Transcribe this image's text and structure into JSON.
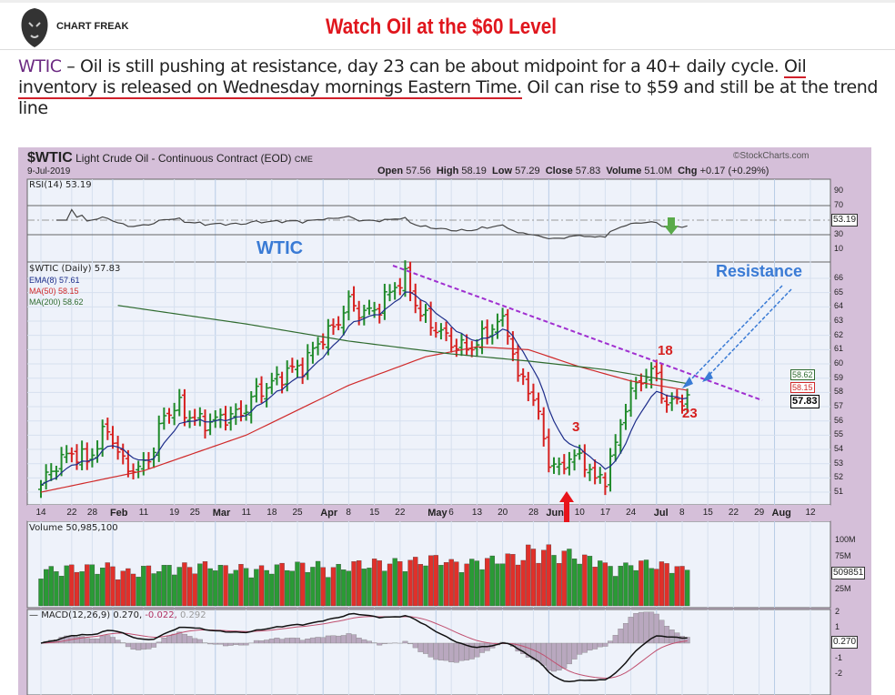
{
  "header": {
    "logo_text": "CHART FREAK",
    "title": "Watch Oil at the $60 Level"
  },
  "article": {
    "lead": "WTIC",
    "text1": "  – Oil is still pushing at resistance, day 23 can be about  midpoint for a 40+ daily cycle. ",
    "underlined": " Oil inventory is released on Wednesday mornings Eastern Time.",
    "text2": " Oil can rise to $59 and still be at the trend line"
  },
  "chart_data": {
    "type": "line",
    "symbol": "$WTIC",
    "name": "Light Crude Oil - Continuous Contract (EOD)",
    "exchange": "CME",
    "date": "9-Jul-2019",
    "source": "©StockCharts.com",
    "quote": {
      "open_label": "Open",
      "open": "57.56",
      "high_label": "High",
      "high": "58.19",
      "low_label": "Low",
      "low": "57.29",
      "close_label": "Close",
      "close": "57.83",
      "volume_label": "Volume",
      "volume": "51.0M",
      "chg_label": "Chg",
      "chg": "+0.17 (+0.29%)"
    },
    "rsi": {
      "label": "RSI(14) 53.19",
      "value_tag": "53.19",
      "ticks": [
        "90",
        "70",
        "30",
        "10"
      ]
    },
    "price": {
      "legend": "$WTIC (Daily) 57.83",
      "ema8": "EMA(8) 57.61",
      "ma50": "MA(50) 58.15",
      "ma200": "MA(200) 58.62",
      "ticks": [
        "66",
        "65",
        "64",
        "63",
        "62",
        "61",
        "60",
        "59",
        "58",
        "57",
        "56",
        "55",
        "54",
        "53",
        "52",
        "51"
      ],
      "tags": {
        "ma200": "58.62",
        "ma50": "58.15",
        "close": "57.83"
      },
      "keypoints_day_close": [
        [
          0,
          51.5
        ],
        [
          3,
          53
        ],
        [
          6,
          53.8
        ],
        [
          9,
          53.2
        ],
        [
          13,
          55.5
        ],
        [
          16,
          53
        ],
        [
          19,
          52.5
        ],
        [
          22,
          54
        ],
        [
          24,
          56.5
        ],
        [
          27,
          57
        ],
        [
          30,
          56
        ],
        [
          33,
          55.9
        ],
        [
          36,
          56.3
        ],
        [
          39,
          56.5
        ],
        [
          42,
          58
        ],
        [
          45,
          58.6
        ],
        [
          48,
          59.5
        ],
        [
          51,
          59.8
        ],
        [
          54,
          61.5
        ],
        [
          57,
          62.5
        ],
        [
          60,
          64.3
        ],
        [
          63,
          63.5
        ],
        [
          66,
          64
        ],
        [
          69,
          65.5
        ],
        [
          71,
          66
        ],
        [
          74,
          63.5
        ],
        [
          77,
          62.5
        ],
        [
          80,
          61.5
        ],
        [
          83,
          61
        ],
        [
          86,
          61.8
        ],
        [
          89,
          63
        ],
        [
          91,
          62.5
        ],
        [
          93,
          59
        ],
        [
          95,
          58.5
        ],
        [
          97,
          56.3
        ],
        [
          99,
          53.2
        ],
        [
          101,
          52.5
        ],
        [
          103,
          53.5
        ],
        [
          106,
          53.2
        ],
        [
          108,
          51.8
        ],
        [
          110,
          52.1
        ],
        [
          112,
          54.3
        ],
        [
          114,
          57.2
        ],
        [
          116,
          58.5
        ],
        [
          118,
          59.3
        ],
        [
          120,
          59.2
        ],
        [
          122,
          57
        ],
        [
          124,
          57.5
        ],
        [
          126,
          57.83
        ]
      ],
      "ma50_keypoints": [
        [
          0,
          51
        ],
        [
          20,
          52.5
        ],
        [
          40,
          55
        ],
        [
          60,
          58.5
        ],
        [
          75,
          60.5
        ],
        [
          85,
          61.2
        ],
        [
          95,
          61
        ],
        [
          105,
          59.8
        ],
        [
          115,
          58.8
        ],
        [
          126,
          58.15
        ]
      ],
      "ma200_keypoints": [
        [
          15,
          64.1
        ],
        [
          40,
          62.8
        ],
        [
          60,
          61.6
        ],
        [
          80,
          60.7
        ],
        [
          95,
          60.2
        ],
        [
          110,
          59.6
        ],
        [
          126,
          58.62
        ]
      ]
    },
    "x_ticks": [
      {
        "d": 0,
        "l": "14"
      },
      {
        "d": 6,
        "l": "22"
      },
      {
        "d": 10,
        "l": "28"
      },
      {
        "d": 14,
        "l": "Feb",
        "b": true
      },
      {
        "d": 20,
        "l": "11"
      },
      {
        "d": 26,
        "l": "19"
      },
      {
        "d": 30,
        "l": "25"
      },
      {
        "d": 34,
        "l": "Mar",
        "b": true
      },
      {
        "d": 40,
        "l": "11"
      },
      {
        "d": 45,
        "l": "18"
      },
      {
        "d": 50,
        "l": "25"
      },
      {
        "d": 55,
        "l": "Apr",
        "b": true
      },
      {
        "d": 60,
        "l": "8"
      },
      {
        "d": 65,
        "l": "15"
      },
      {
        "d": 70,
        "l": "22"
      },
      {
        "d": 77,
        "l": "May",
        "b": true
      },
      {
        "d": 80,
        "l": "6"
      },
      {
        "d": 85,
        "l": "13"
      },
      {
        "d": 90,
        "l": "20"
      },
      {
        "d": 96,
        "l": "28"
      },
      {
        "d": 99,
        "l": "Jun",
        "b": true
      },
      {
        "d": 105,
        "l": "10"
      },
      {
        "d": 110,
        "l": "17"
      },
      {
        "d": 115,
        "l": "24"
      },
      {
        "d": 120,
        "l": "Jul",
        "b": true
      },
      {
        "d": 125,
        "l": "8"
      },
      {
        "d": 130,
        "l": "15"
      },
      {
        "d": 135,
        "l": "22"
      },
      {
        "d": 140,
        "l": "29"
      },
      {
        "d": 143,
        "l": "Aug",
        "b": true
      },
      {
        "d": 150,
        "l": "12"
      }
    ],
    "volume": {
      "label": "Volume 50,985,100",
      "ticks": [
        "100M",
        "75M",
        "25M"
      ],
      "tag": "509851",
      "weekly_avg_millions": [
        55,
        58,
        60,
        52,
        57,
        60,
        62,
        58,
        56,
        60,
        62,
        58,
        64,
        66,
        68,
        72,
        65,
        70,
        74,
        85,
        80,
        72,
        60,
        65,
        62,
        55
      ]
    },
    "macd": {
      "label": "MACD(12,26,9)",
      "macd": "0.270,",
      "signal": "-0.022,",
      "hist": "0.292",
      "ticks": [
        "2",
        "1",
        "-1",
        "-2"
      ],
      "tag": "0.270"
    },
    "annotations": {
      "wtic": "WTIC",
      "resistance": "Resistance",
      "day18": "18",
      "day3": "3",
      "day23": "23"
    },
    "colors": {
      "up": "#1f8a2a",
      "down": "#d6201f",
      "ema": "#1d2d8a",
      "ma50": "#d02a2a",
      "ma200": "#2f6b2f",
      "trend": "#a02fd0",
      "annot_blue": "#3a7bd5"
    }
  }
}
